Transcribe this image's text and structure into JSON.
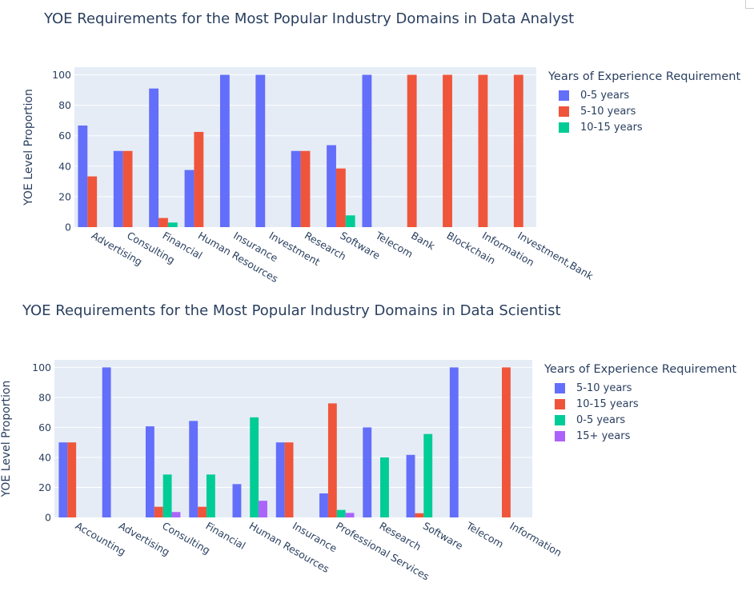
{
  "chart_data": [
    {
      "type": "bar",
      "title": "YOE Requirements for the Most Popular Industry Domains in Data Analyst",
      "xlabel": "",
      "ylabel": "YOE Level Proportion",
      "ylim": [
        0,
        105
      ],
      "yticks": [
        0,
        20,
        40,
        60,
        80,
        100
      ],
      "grid": true,
      "legend_title": "Years of Experience Requirement",
      "legend_position": "right",
      "categories": [
        "Advertising",
        "Consulting",
        "Financial",
        "Human Resources",
        "Insurance",
        "Investment",
        "Research",
        "Software",
        "Telecom",
        "Bank",
        "Blockchain",
        "Information",
        "Investment,Bank"
      ],
      "series": [
        {
          "name": "0-5 years",
          "color": "#636efa",
          "values": [
            66.7,
            50,
            91,
            37.5,
            100,
            100,
            50,
            53.8,
            100,
            0,
            0,
            0,
            0
          ]
        },
        {
          "name": "5-10 years",
          "color": "#ef553b",
          "values": [
            33.3,
            50,
            6,
            62.5,
            0,
            0,
            50,
            38.5,
            0,
            100,
            100,
            100,
            100
          ]
        },
        {
          "name": "10-15 years",
          "color": "#00cc96",
          "values": [
            0,
            0,
            3,
            0,
            0,
            0,
            0,
            7.7,
            0,
            0,
            0,
            0,
            0
          ]
        }
      ]
    },
    {
      "type": "bar",
      "title": "YOE Requirements for the Most Popular Industry Domains in Data Scientist",
      "xlabel": "",
      "ylabel": "YOE Level Proportion",
      "ylim": [
        0,
        105
      ],
      "yticks": [
        0,
        20,
        40,
        60,
        80,
        100
      ],
      "grid": true,
      "legend_title": "Years of Experience Requirement",
      "legend_position": "right",
      "categories": [
        "Accounting",
        "Advertising",
        "Consulting",
        "Financial",
        "Human Resources",
        "Insurance",
        "Professional Services",
        "Research",
        "Software",
        "Telecom",
        "Information"
      ],
      "series": [
        {
          "name": "5-10 years",
          "color": "#636efa",
          "values": [
            50,
            100,
            60.7,
            64.3,
            22.2,
            50,
            16,
            60,
            41.7,
            100,
            0
          ]
        },
        {
          "name": "10-15 years",
          "color": "#ef553b",
          "values": [
            50,
            0,
            7.1,
            7.1,
            0,
            50,
            76,
            0,
            2.8,
            0,
            100
          ]
        },
        {
          "name": "0-5 years",
          "color": "#00cc96",
          "values": [
            0,
            0,
            28.6,
            28.6,
            66.7,
            0,
            5,
            40,
            55.6,
            0,
            0
          ]
        },
        {
          "name": "15+ years",
          "color": "#ab63fa",
          "values": [
            0,
            0,
            3.6,
            0,
            11.1,
            0,
            3,
            0,
            0,
            0,
            0
          ]
        }
      ]
    }
  ]
}
